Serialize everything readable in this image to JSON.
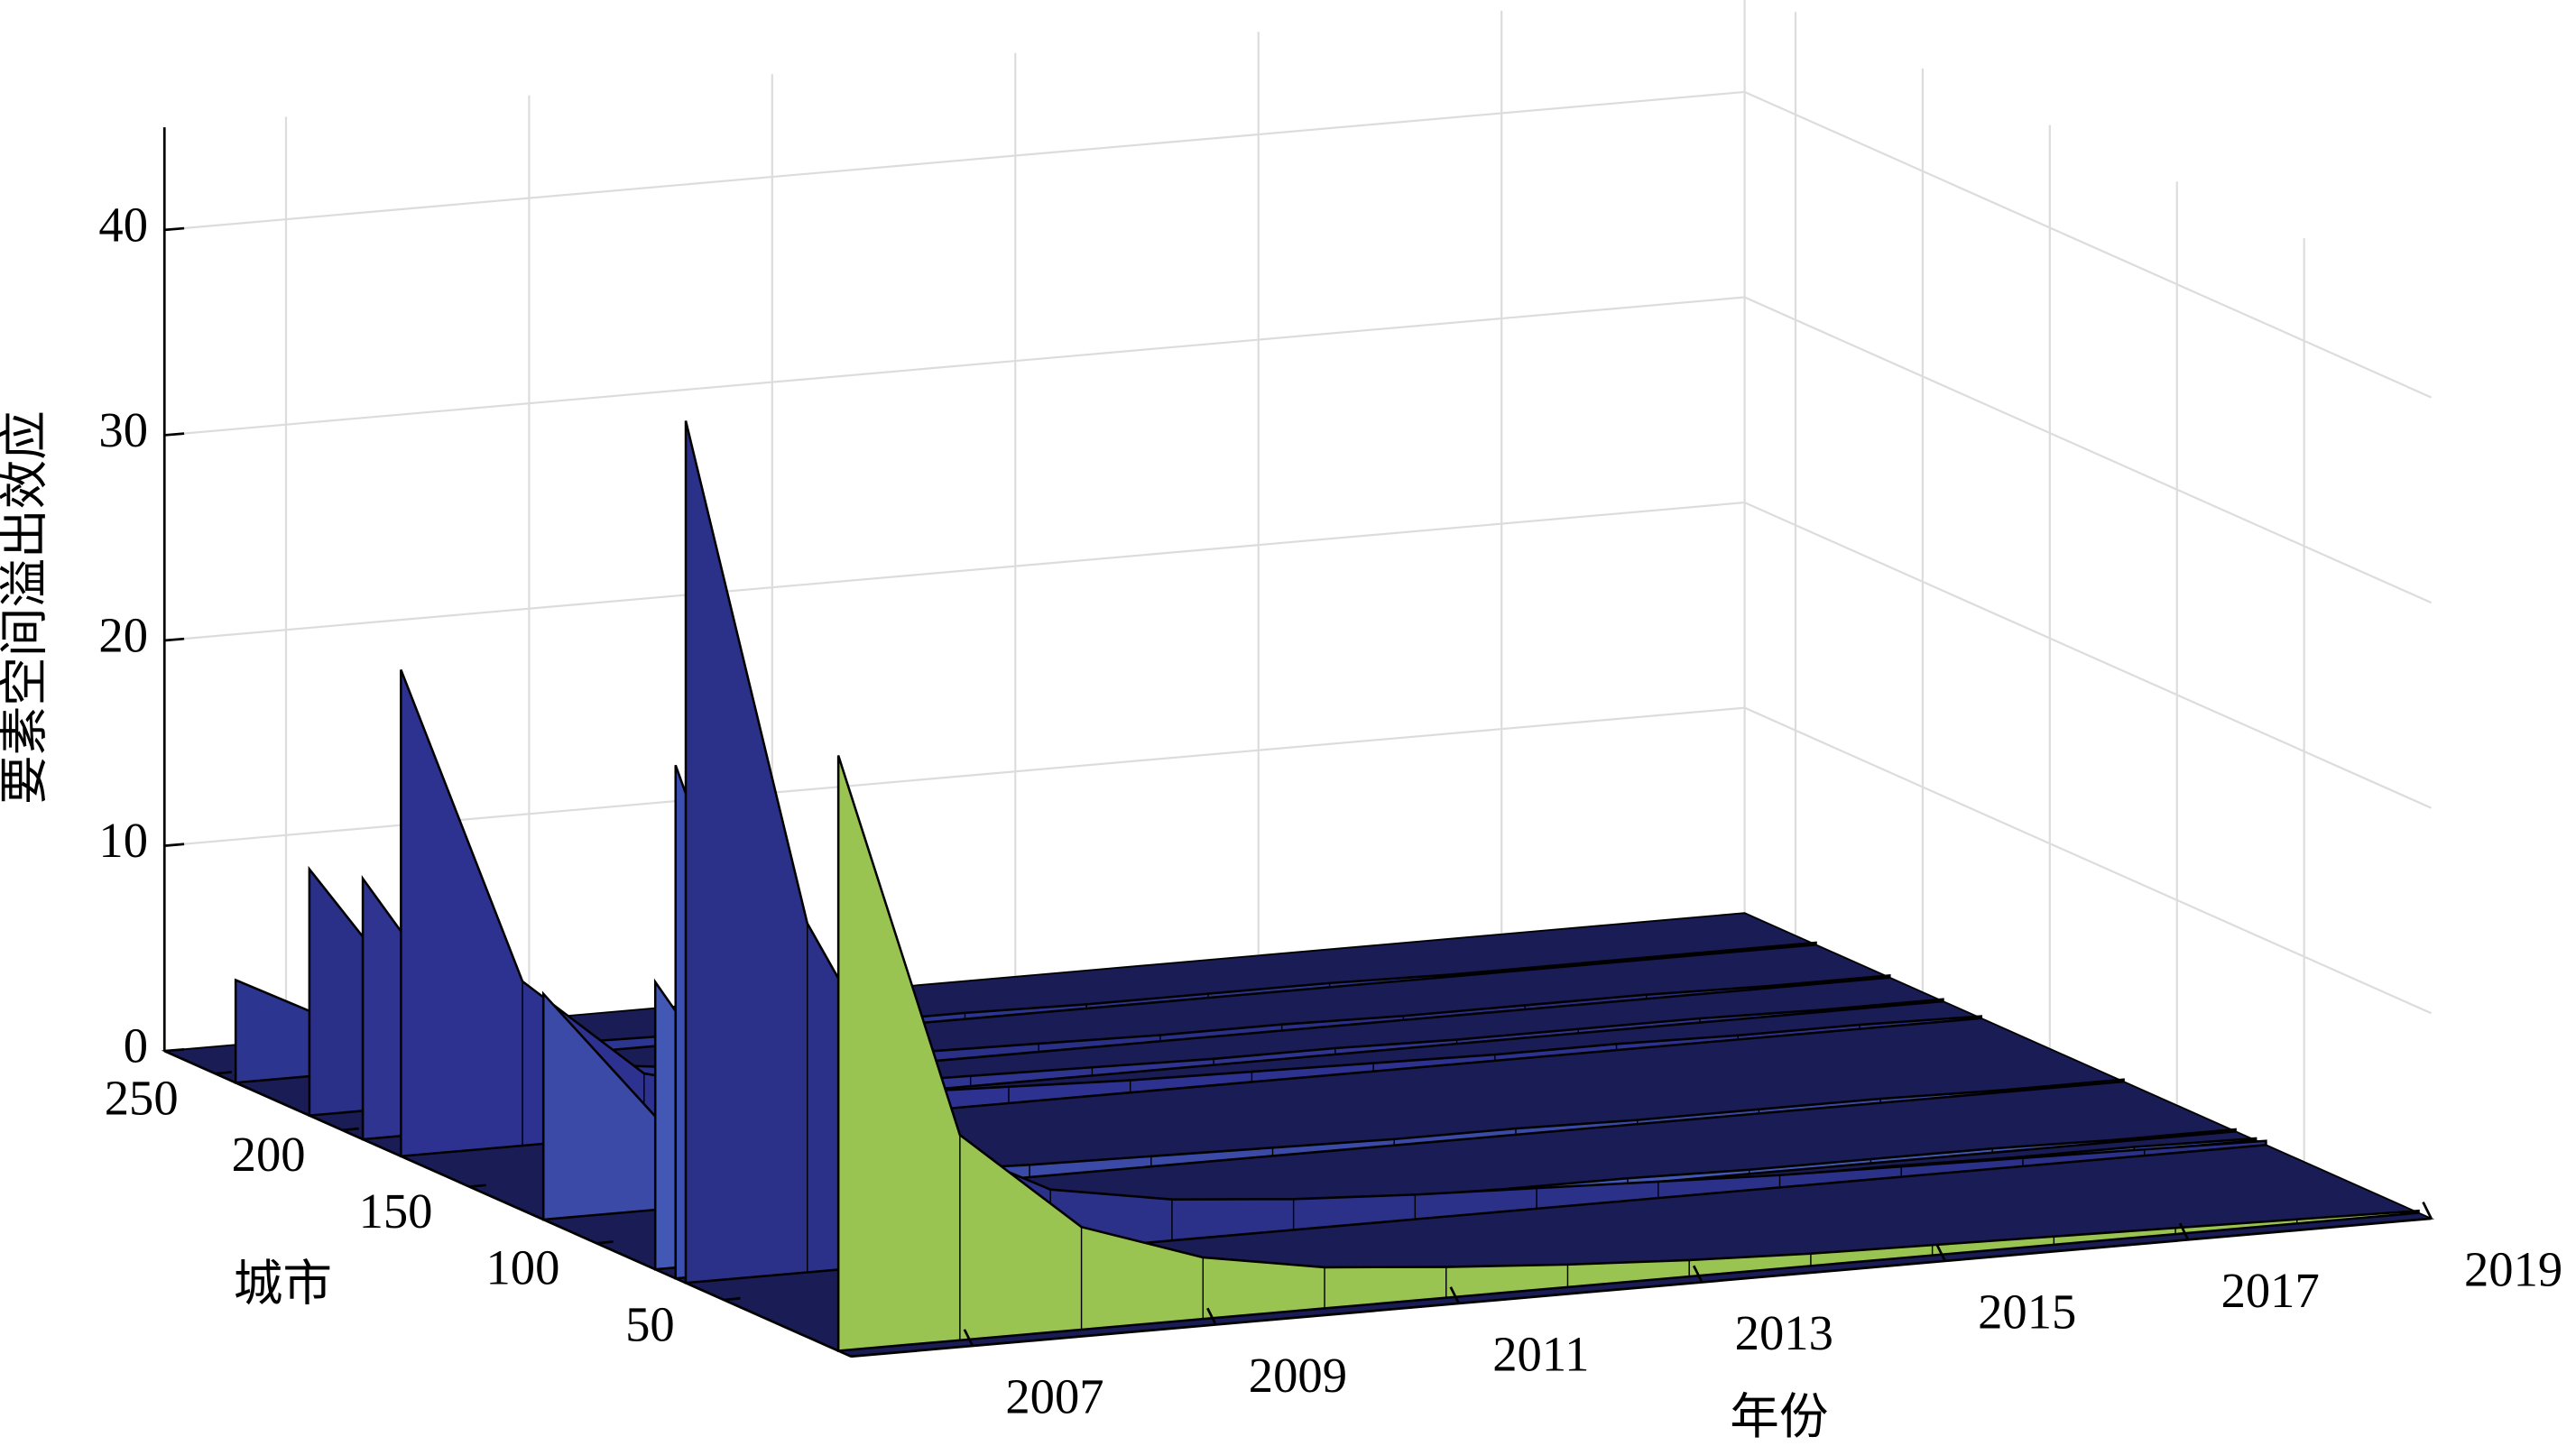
{
  "chart_data": {
    "type": "surface3d",
    "xlabel": "年份",
    "ylabel": "城市",
    "zlabel": "要素空间溢出效应",
    "x": [
      2006,
      2007,
      2008,
      2009,
      2010,
      2011,
      2012,
      2013,
      2014,
      2015,
      2016,
      2017,
      2018,
      2019
    ],
    "xlim": [
      2006,
      2019
    ],
    "xticks": [
      2007,
      2009,
      2011,
      2013,
      2015,
      2017,
      2019
    ],
    "ylim": [
      0,
      270
    ],
    "yticks": [
      50,
      100,
      150,
      200,
      250
    ],
    "zlim": [
      0,
      45
    ],
    "zticks": [
      0,
      10,
      20,
      30,
      40
    ],
    "grid": true,
    "series": [
      {
        "y": 242,
        "color": "#2c3590",
        "values": [
          5,
          2,
          0.8,
          0.5,
          0.4,
          0.3,
          0.3,
          0.2,
          0.2,
          0.2,
          0.1,
          0.1,
          0.1,
          0.1
        ]
      },
      {
        "y": 213,
        "color": "#2a2f88",
        "values": [
          12,
          4,
          1.5,
          0.8,
          0.6,
          0.5,
          0.4,
          0.3,
          0.3,
          0.2,
          0.2,
          0.2,
          0.1,
          0.1
        ]
      },
      {
        "y": 192,
        "color": "#2e348f",
        "values": [
          12.7,
          4,
          1.5,
          0.8,
          0.6,
          0.5,
          0.4,
          0.3,
          0.3,
          0.2,
          0.2,
          0.2,
          0.1,
          0.1
        ]
      },
      {
        "y": 177,
        "color": "#2d3290",
        "values": [
          23.7,
          8,
          3,
          1.5,
          1,
          0.8,
          0.6,
          0.5,
          0.4,
          0.3,
          0.3,
          0.2,
          0.2,
          0.1
        ]
      },
      {
        "y": 121,
        "color": "#3a4aa6",
        "values": [
          11,
          4,
          1.5,
          0.8,
          0.6,
          0.5,
          0.4,
          0.3,
          0.3,
          0.2,
          0.2,
          0.2,
          0.1,
          0.1
        ]
      },
      {
        "y": 77,
        "color": "#4258b4",
        "values": [
          14,
          5,
          2,
          1,
          0.7,
          0.5,
          0.4,
          0.3,
          0.3,
          0.2,
          0.2,
          0.2,
          0.1,
          0.1
        ]
      },
      {
        "y": 69,
        "color": "#3b50b0",
        "values": [
          25,
          8,
          3,
          1.5,
          1,
          0.8,
          0.6,
          0.5,
          0.4,
          0.3,
          0.3,
          0.2,
          0.2,
          0.1
        ]
      },
      {
        "y": 65,
        "color": "#2b3088",
        "values": [
          42,
          17,
          6,
          3,
          2,
          1.5,
          1.2,
          1,
          0.8,
          0.6,
          0.5,
          0.4,
          0.3,
          0.2
        ]
      },
      {
        "y": 5,
        "color": "#9ac451",
        "values": [
          29,
          10,
          5,
          3,
          2,
          1.5,
          1.1,
          0.8,
          0.6,
          0.5,
          0.4,
          0.3,
          0.2,
          0.1
        ]
      }
    ]
  }
}
